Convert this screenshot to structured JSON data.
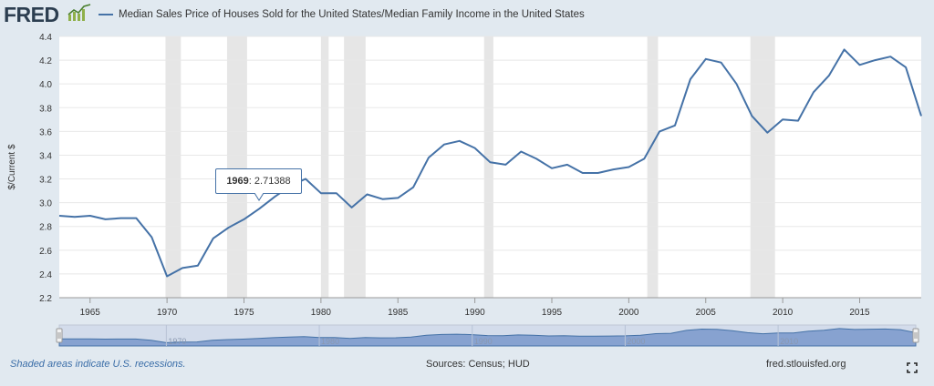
{
  "header": {
    "logo_text": "FRED",
    "legend_label": "Median Sales Price of Houses Sold for the United States/Median Family Income in the United States"
  },
  "tooltip": {
    "year": "1969",
    "value": ": 2.71388"
  },
  "footer": {
    "recession_note": "Shaded areas indicate U.S. recessions.",
    "sources": "Sources: Census; HUD",
    "site": "fred.stlouisfed.org"
  },
  "chart_data": {
    "type": "line",
    "title": "Median Sales Price of Houses Sold for the United States/Median Family Income in the United States",
    "xlabel": "",
    "ylabel": "$/Current $",
    "xlim": [
      1963,
      2019
    ],
    "ylim": [
      2.2,
      4.4
    ],
    "x_ticks": [
      1965,
      1970,
      1975,
      1980,
      1985,
      1990,
      1995,
      2000,
      2005,
      2010,
      2015
    ],
    "y_ticks": [
      2.2,
      2.4,
      2.6,
      2.8,
      3.0,
      3.2,
      3.4,
      3.6,
      3.8,
      4.0,
      4.2,
      4.4
    ],
    "color": "#4572a7",
    "recessions": [
      [
        1969.9,
        1970.9
      ],
      [
        1973.9,
        1975.2
      ],
      [
        1980.0,
        1980.5
      ],
      [
        1981.5,
        1982.9
      ],
      [
        1990.6,
        1991.2
      ],
      [
        2001.2,
        2001.9
      ],
      [
        2007.9,
        2009.5
      ]
    ],
    "navigator_ticks": [
      1970,
      1980,
      1990,
      2000,
      2010
    ],
    "series": [
      {
        "name": "Median Sales Price of Houses Sold for the United States/Median Family Income in the United States",
        "x": [
          1963,
          1964,
          1965,
          1966,
          1967,
          1968,
          1969,
          1970,
          1971,
          1972,
          1973,
          1974,
          1975,
          1976,
          1977,
          1978,
          1979,
          1980,
          1981,
          1982,
          1983,
          1984,
          1985,
          1986,
          1987,
          1988,
          1989,
          1990,
          1991,
          1992,
          1993,
          1994,
          1995,
          1996,
          1997,
          1998,
          1999,
          2000,
          2001,
          2002,
          2003,
          2004,
          2005,
          2006,
          2007,
          2008,
          2009,
          2010,
          2011,
          2012,
          2013,
          2014,
          2015,
          2016,
          2017,
          2018,
          2019
        ],
        "values": [
          2.89,
          2.88,
          2.89,
          2.86,
          2.87,
          2.87,
          2.71,
          2.38,
          2.45,
          2.47,
          2.7,
          2.79,
          2.86,
          2.95,
          3.05,
          3.14,
          3.2,
          3.08,
          3.08,
          2.96,
          3.07,
          3.03,
          3.04,
          3.13,
          3.38,
          3.49,
          3.52,
          3.46,
          3.34,
          3.32,
          3.43,
          3.37,
          3.29,
          3.32,
          3.25,
          3.25,
          3.28,
          3.3,
          3.37,
          3.6,
          3.65,
          4.04,
          4.21,
          4.18,
          4.0,
          3.73,
          3.59,
          3.7,
          3.69,
          3.93,
          4.07,
          4.29,
          4.16,
          4.2,
          4.23,
          4.14,
          3.73
        ]
      }
    ]
  }
}
